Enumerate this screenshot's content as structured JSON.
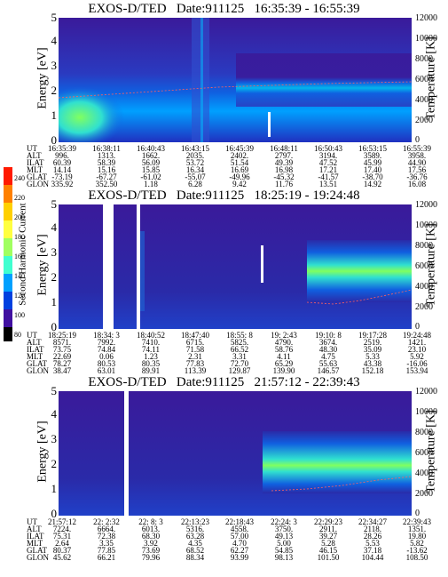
{
  "colorbar": {
    "title": "Second Harmonic Current",
    "ticks": [
      "240",
      "220",
      "200",
      "180",
      "160",
      "140",
      "120",
      "100",
      "80"
    ],
    "colors": [
      "#ff1a00",
      "#ff8000",
      "#ffd000",
      "#ffff40",
      "#a0ff60",
      "#40ffd0",
      "#00a0ff",
      "#0040e0",
      "#4010a0",
      "#000000"
    ]
  },
  "panels": [
    {
      "title": "EXOS-D/TED   Date:911125   16:35:39 - 16:55:39",
      "ylabel": "Energy [eV]",
      "ylabel_right": "Temperature [K]",
      "y_ticks": [
        "0",
        "1",
        "2",
        "3",
        "4",
        "5"
      ],
      "t_ticks": [
        "0",
        "2000",
        "4000",
        "6000",
        "8000",
        "10000",
        "12000"
      ],
      "ephem": [
        {
          "name": "UT",
          "vals": [
            "16:35:39",
            "16:38:11",
            "16:40:43",
            "16:43:15",
            "16:45:39",
            "16:48:11",
            "16:50:43",
            "16:53:15",
            "16:55:39"
          ]
        },
        {
          "name": "ALT",
          "vals": [
            "996.",
            "1313.",
            "1662.",
            "2035.",
            "2402.",
            "2797.",
            "3194.",
            "3589.",
            "3958."
          ]
        },
        {
          "name": "ILAT",
          "vals": [
            "60.39",
            "58.39",
            "56.09",
            "53.72",
            "51.54",
            "49.39",
            "47.52",
            "45.99",
            "44.90"
          ]
        },
        {
          "name": "MLT",
          "vals": [
            "14.14",
            "15.16",
            "15.85",
            "16.34",
            "16.69",
            "16.98",
            "17.21",
            "17.40",
            "17.56"
          ]
        },
        {
          "name": "GLAT",
          "vals": [
            "-73.19",
            "-67.27",
            "-61.02",
            "-55.07",
            "-49.96",
            "-45.32",
            "-41.57",
            "-38.70",
            "-36.76"
          ]
        },
        {
          "name": "GLON",
          "vals": [
            "335.92",
            "352.50",
            "1.18",
            "6.28",
            "9.42",
            "11.76",
            "13.51",
            "14.92",
            "16.08"
          ]
        }
      ]
    },
    {
      "title": "EXOS-D/TED   Date:911125   18:25:19 - 19:24:48",
      "ylabel": "Energy [eV]",
      "ylabel_right": "Temperature [K]",
      "y_ticks": [
        "0",
        "1",
        "2",
        "3",
        "4",
        "5"
      ],
      "t_ticks": [
        "0",
        "2000",
        "4000",
        "6000",
        "8000",
        "10000",
        "12000"
      ],
      "ephem": [
        {
          "name": "UT",
          "vals": [
            "18:25:19",
            "18:34: 3",
            "18:40:52",
            "18:47:40",
            "18:55: 8",
            "19: 2:43",
            "19:10: 8",
            "19:17:28",
            "19:24:48"
          ]
        },
        {
          "name": "ALT",
          "vals": [
            "8571.",
            "7992.",
            "7410.",
            "6715.",
            "5825.",
            "4790.",
            "3674.",
            "2519.",
            "1421."
          ]
        },
        {
          "name": "ILAT",
          "vals": [
            "73.75",
            "74.84",
            "74.11",
            "71.58",
            "66.52",
            "58.76",
            "48.30",
            "35.09",
            "23.10"
          ]
        },
        {
          "name": "MLT",
          "vals": [
            "22.69",
            "0.06",
            "1.23",
            "2.31",
            "3.31",
            "4.11",
            "4.75",
            "5.33",
            "5.92"
          ]
        },
        {
          "name": "GLAT",
          "vals": [
            "78.27",
            "80.53",
            "80.35",
            "77.83",
            "72.70",
            "65.29",
            "55.63",
            "43.38",
            "-16.06"
          ]
        },
        {
          "name": "GLON",
          "vals": [
            "38.47",
            "63.01",
            "89.91",
            "113.39",
            "129.87",
            "139.90",
            "146.57",
            "152.18",
            "153.94"
          ]
        }
      ]
    },
    {
      "title": "EXOS-D/TED   Date:911125   21:57:12 - 22:39:43",
      "ylabel": "Energy [eV]",
      "ylabel_right": "Temperature [K]",
      "y_ticks": [
        "0",
        "1",
        "2",
        "3",
        "4",
        "5"
      ],
      "t_ticks": [
        "0",
        "2000",
        "4000",
        "6000",
        "8000",
        "10000",
        "12000"
      ],
      "ephem": [
        {
          "name": "UT",
          "vals": [
            "21:57:12",
            "22: 2:32",
            "22: 8: 3",
            "22:13:23",
            "22:18:43",
            "22:24: 3",
            "22:29:23",
            "22:34:27",
            "22:39:43"
          ]
        },
        {
          "name": "ALT",
          "vals": [
            "7224.",
            "6664.",
            "6013.",
            "5316.",
            "4558.",
            "3750.",
            "2911.",
            "2118.",
            "1351."
          ]
        },
        {
          "name": "ILAT",
          "vals": [
            "75.31",
            "72.38",
            "68.30",
            "63.28",
            "57.00",
            "49.13",
            "39.27",
            "28.26",
            "19.80"
          ]
        },
        {
          "name": "MLT",
          "vals": [
            "2.64",
            "3.35",
            "3.92",
            "4.35",
            "4.70",
            "5.00",
            "5.28",
            "5.53",
            "5.82"
          ]
        },
        {
          "name": "GLAT",
          "vals": [
            "80.37",
            "77.85",
            "73.69",
            "68.52",
            "62.27",
            "54.85",
            "46.15",
            "37.18",
            "-13.62"
          ]
        },
        {
          "name": "GLON",
          "vals": [
            "45.62",
            "66.21",
            "79.96",
            "88.34",
            "93.99",
            "98.13",
            "101.50",
            "104.44",
            "108.50"
          ]
        }
      ]
    }
  ],
  "chart_data": [
    {
      "type": "heatmap",
      "title": "EXOS-D/TED   Date:911125   16:35:39 - 16:55:39",
      "ylabel": "Energy [eV]",
      "ylabel_right": "Temperature [K]",
      "ylim": [
        0,
        5
      ],
      "ylim_right": [
        0,
        12000
      ]
    },
    {
      "type": "heatmap",
      "title": "EXOS-D/TED   Date:911125   18:25:19 - 19:24:48",
      "ylabel": "Energy [eV]",
      "ylabel_right": "Temperature [K]",
      "ylim": [
        0,
        5
      ],
      "ylim_right": [
        0,
        12000
      ]
    },
    {
      "type": "heatmap",
      "title": "EXOS-D/TED   Date:911125   21:57:12 - 22:39:43",
      "ylabel": "Energy [eV]",
      "ylabel_right": "Temperature [K]",
      "ylim": [
        0,
        5
      ],
      "ylim_right": [
        0,
        12000
      ]
    }
  ]
}
